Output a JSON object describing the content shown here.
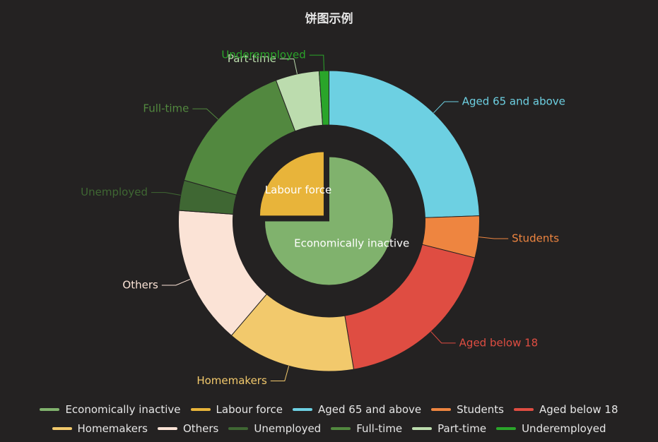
{
  "title": "饼图示例",
  "colors": {
    "Economically inactive": "#80b26d",
    "Labour force": "#e8b43a",
    "Aged 65 and above": "#6dd0e2",
    "Students": "#ee8540",
    "Aged below 18": "#df4d42",
    "Homemakers": "#f2c96c",
    "Others": "#fbe3d6",
    "Unemployed": "#3f6733",
    "Full-time": "#52883f",
    "Part-time": "#bcdcae",
    "Underemployed": "#2aa52a"
  },
  "legend": {
    "row1": [
      "Economically inactive",
      "Labour force",
      "Aged 65 and above",
      "Students",
      "Aged below 18"
    ],
    "row2": [
      "Homemakers",
      "Others",
      "Unemployed",
      "Full-time",
      "Part-time",
      "Underemployed"
    ]
  },
  "chart_data": {
    "type": "pie",
    "title": "饼图示例",
    "inner": {
      "labels": [
        "Economically inactive",
        "Labour force"
      ],
      "values": [
        75,
        25
      ],
      "selected": "Labour force"
    },
    "outer": {
      "labels": [
        "Aged 65 and above",
        "Students",
        "Aged below 18",
        "Homemakers",
        "Others",
        "Unemployed",
        "Full-time",
        "Part-time",
        "Underemployed"
      ],
      "values": [
        25.6,
        4.7,
        19.3,
        14.5,
        15.6,
        3.4,
        15.6,
        4.9,
        1.1
      ]
    },
    "legend_position": "bottom"
  }
}
